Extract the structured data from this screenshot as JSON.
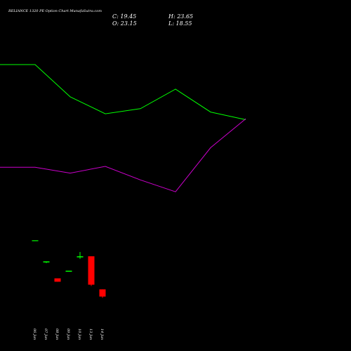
{
  "chart_data": {
    "type": "candlestick",
    "title": "RELIANCE 1320 PE Option Chart MunafaSutra.com",
    "ohlc_readout": {
      "close": "C: 19.45",
      "high": "H: 23.65",
      "open": "O: 23.15",
      "low": "L: 18.55"
    },
    "x_labels": [
      "06 Jan",
      "07 Jan",
      "08 Jan",
      "09 Jan",
      "10 Jan",
      "13 Jan",
      "14 Jan"
    ],
    "candles": [
      {
        "label": "06 Jan",
        "open": 24.6,
        "high": 24.6,
        "low": 24.6,
        "close": 24.6,
        "color": "#00cc00"
      },
      {
        "label": "07 Jan",
        "open": 22.1,
        "high": 22.1,
        "low": 21.9,
        "close": 22.1,
        "color": "#00ff00"
      },
      {
        "label": "08 Jan",
        "open": 20.1,
        "high": 20.1,
        "low": 19.7,
        "close": 19.7,
        "color": "#ff0000"
      },
      {
        "label": "09 Jan",
        "open": 21.0,
        "high": 21.0,
        "low": 21.0,
        "close": 21.0,
        "color": "#00ff00"
      },
      {
        "label": "10 Jan",
        "open": 22.6,
        "high": 23.2,
        "low": 22.4,
        "close": 22.7,
        "color": "#00ff00"
      },
      {
        "label": "13 Jan",
        "open": 22.7,
        "high": 22.7,
        "low": 19.2,
        "close": 19.35,
        "color": "#ff0000"
      },
      {
        "label": "14 Jan",
        "open": 18.8,
        "high": 18.8,
        "low": 17.8,
        "close": 17.95,
        "color": "#ff0000"
      }
    ],
    "series": [
      {
        "color": "#00ff00",
        "values": [
          45.3,
          45.3,
          41.5,
          39.5,
          40.1,
          42.4,
          39.7,
          38.8
        ]
      },
      {
        "color": "#cc00cc",
        "values": [
          33.2,
          33.2,
          32.5,
          33.3,
          31.7,
          30.3,
          35.5,
          38.9
        ]
      }
    ],
    "ylim": [
      16.5,
      49.6
    ]
  },
  "colors": {
    "background": "#000000",
    "text": "#ffffff"
  }
}
